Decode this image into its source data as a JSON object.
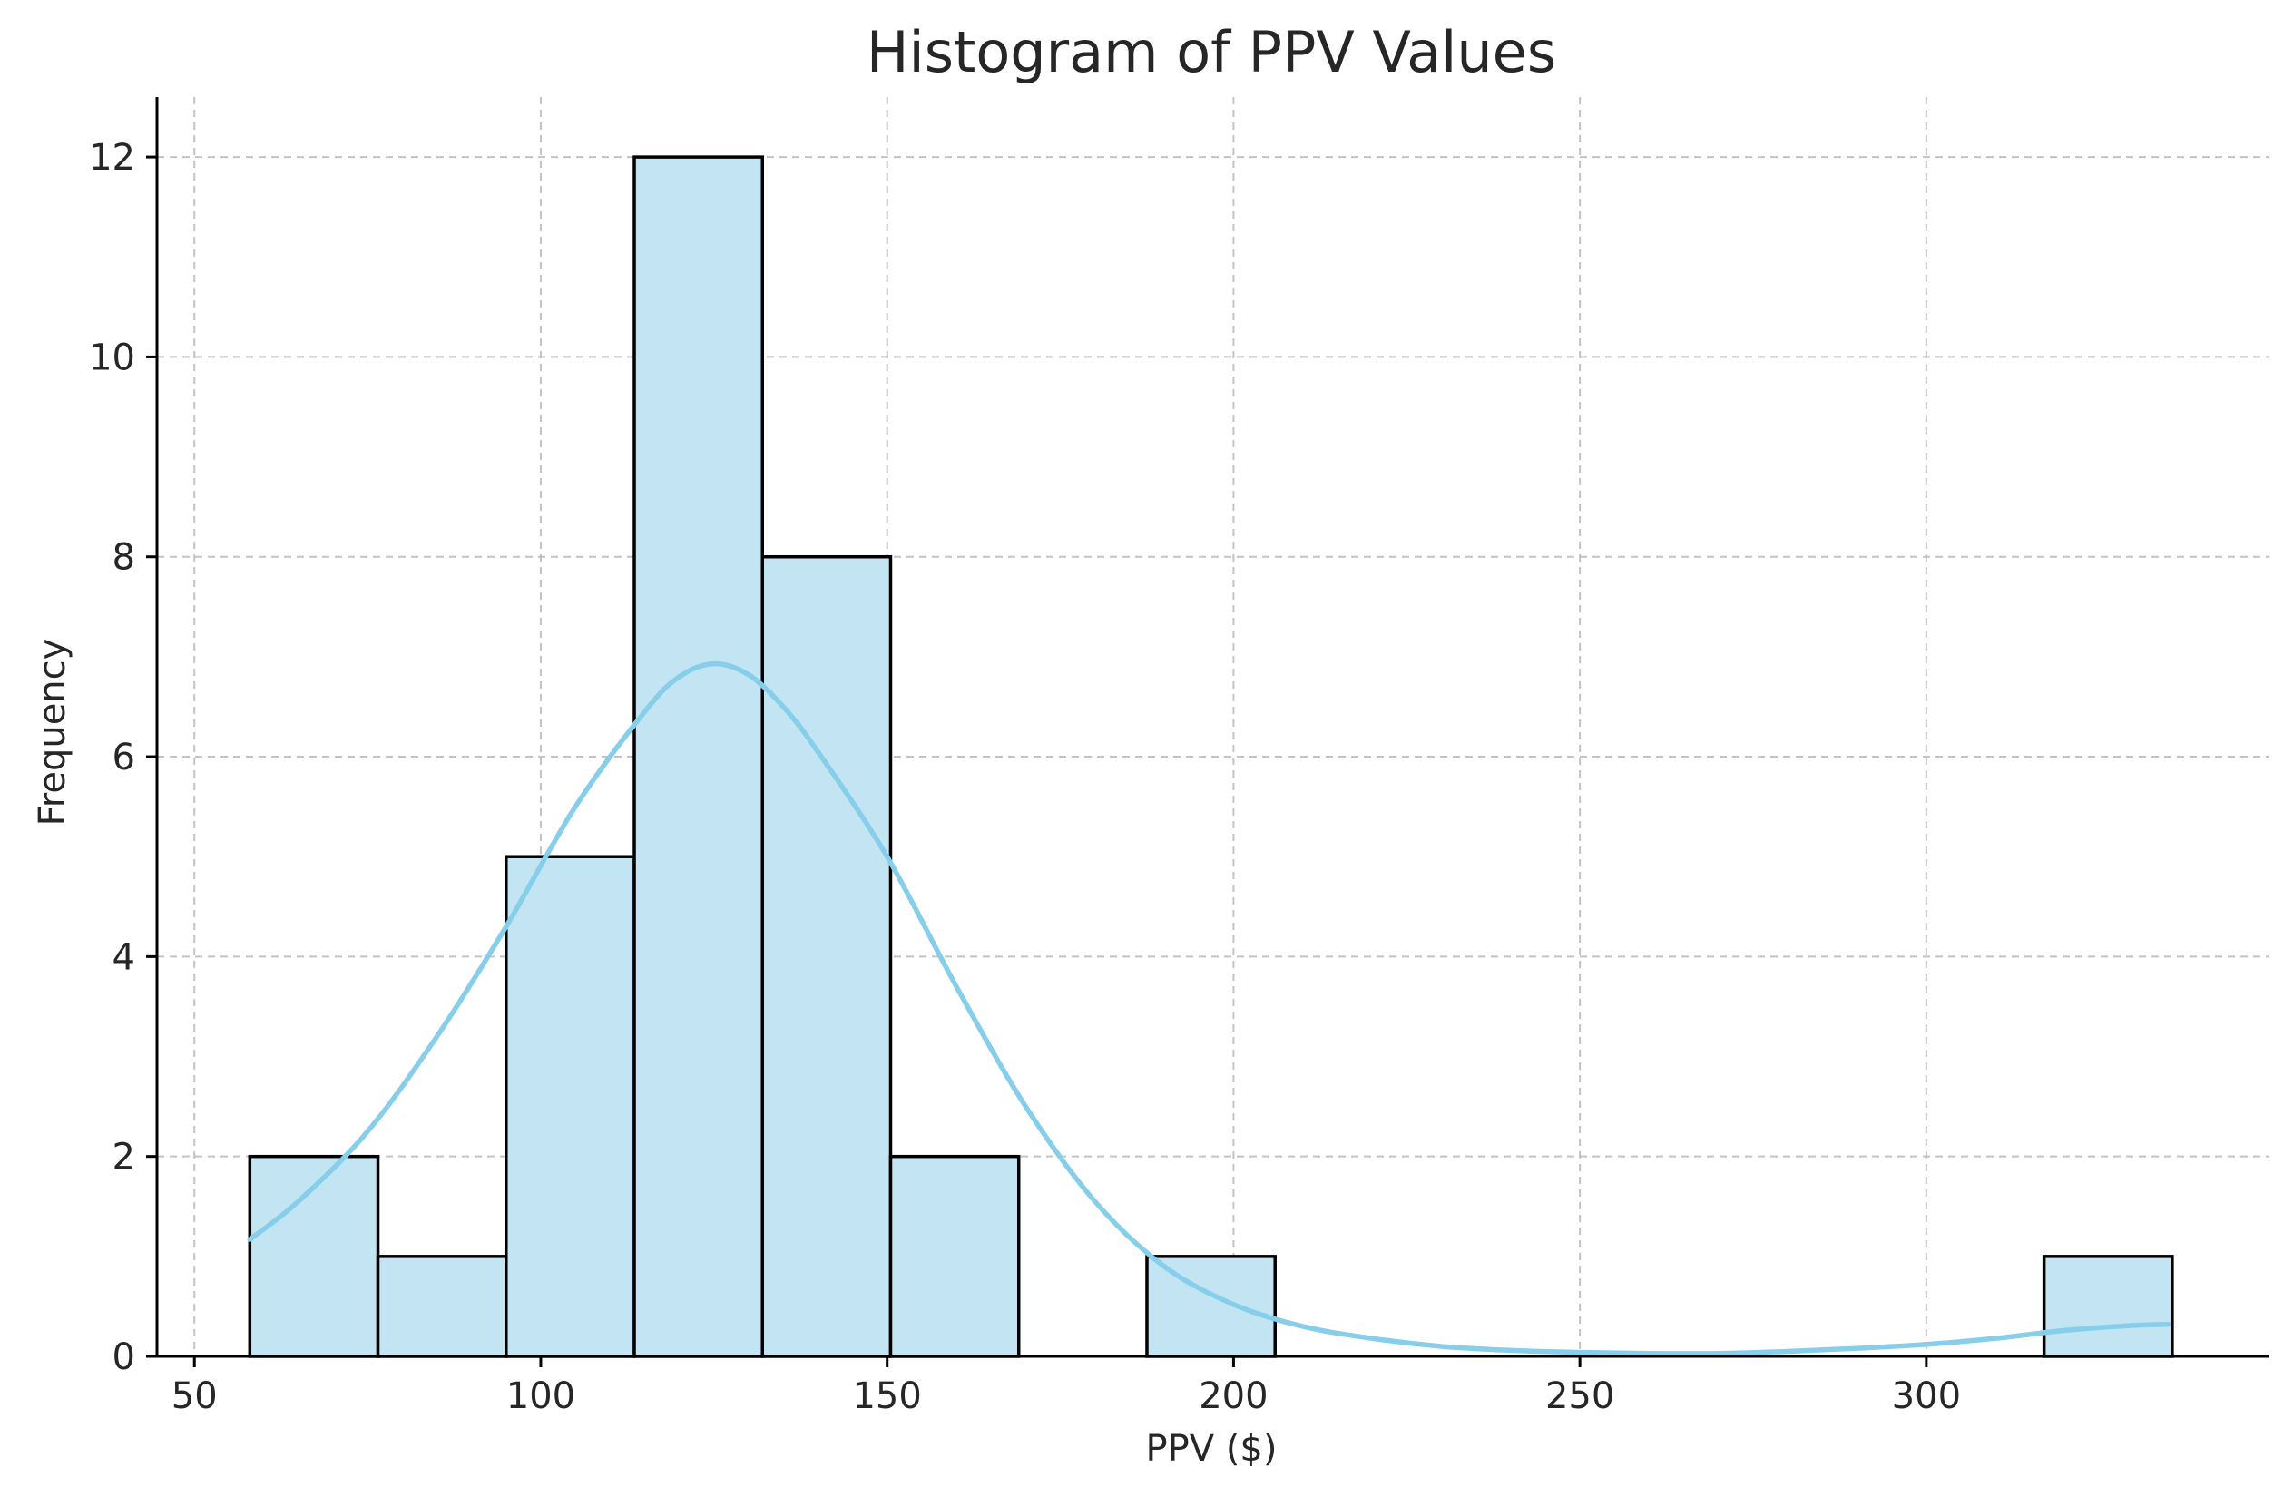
{
  "chart_data": {
    "type": "bar",
    "subtype": "histogram",
    "title": "Histogram of PPV Values",
    "xlabel": "PPV ($)",
    "ylabel": "Frequency",
    "xlim": [
      44.6,
      349.4
    ],
    "ylim": [
      0,
      12.6
    ],
    "x_ticks": [
      50,
      100,
      150,
      200,
      250,
      300
    ],
    "x_tick_labels": [
      "50",
      "100",
      "150",
      "200",
      "250",
      "300"
    ],
    "y_ticks": [
      0,
      2,
      4,
      6,
      8,
      10,
      12
    ],
    "y_tick_labels": [
      "0",
      "2",
      "4",
      "6",
      "8",
      "10",
      "12"
    ],
    "grid": true,
    "bar_color": "#c2e4f3",
    "edge_color": "#000000",
    "kde_color": "#87ceeb",
    "bins": [
      {
        "start": 58.0,
        "end": 76.5,
        "count": 2
      },
      {
        "start": 76.5,
        "end": 95.0,
        "count": 1
      },
      {
        "start": 95.0,
        "end": 113.5,
        "count": 5
      },
      {
        "start": 113.5,
        "end": 132.0,
        "count": 12
      },
      {
        "start": 132.0,
        "end": 150.5,
        "count": 8
      },
      {
        "start": 150.5,
        "end": 169.0,
        "count": 2
      },
      {
        "start": 169.0,
        "end": 187.5,
        "count": 0
      },
      {
        "start": 187.5,
        "end": 206.0,
        "count": 1
      },
      {
        "start": 206.0,
        "end": 224.5,
        "count": 0
      },
      {
        "start": 224.5,
        "end": 243.0,
        "count": 0
      },
      {
        "start": 243.0,
        "end": 261.5,
        "count": 0
      },
      {
        "start": 261.5,
        "end": 280.0,
        "count": 0
      },
      {
        "start": 280.0,
        "end": 298.5,
        "count": 0
      },
      {
        "start": 298.5,
        "end": 317.0,
        "count": 0
      },
      {
        "start": 317.0,
        "end": 335.5,
        "count": 1
      }
    ],
    "kde": {
      "x": [
        58,
        65,
        75,
        85,
        95,
        105,
        115,
        120,
        125,
        130,
        135,
        140,
        150,
        160,
        170,
        180,
        190,
        200,
        210,
        220,
        230,
        240,
        250,
        260,
        270,
        280,
        290,
        300,
        310,
        320,
        330,
        335
      ],
      "y": [
        1.17,
        1.55,
        2.25,
        3.2,
        4.3,
        5.5,
        6.45,
        6.8,
        6.93,
        6.82,
        6.5,
        6.05,
        5.0,
        3.7,
        2.5,
        1.55,
        0.9,
        0.52,
        0.3,
        0.18,
        0.1,
        0.06,
        0.04,
        0.03,
        0.03,
        0.05,
        0.08,
        0.12,
        0.18,
        0.26,
        0.31,
        0.32
      ]
    }
  }
}
